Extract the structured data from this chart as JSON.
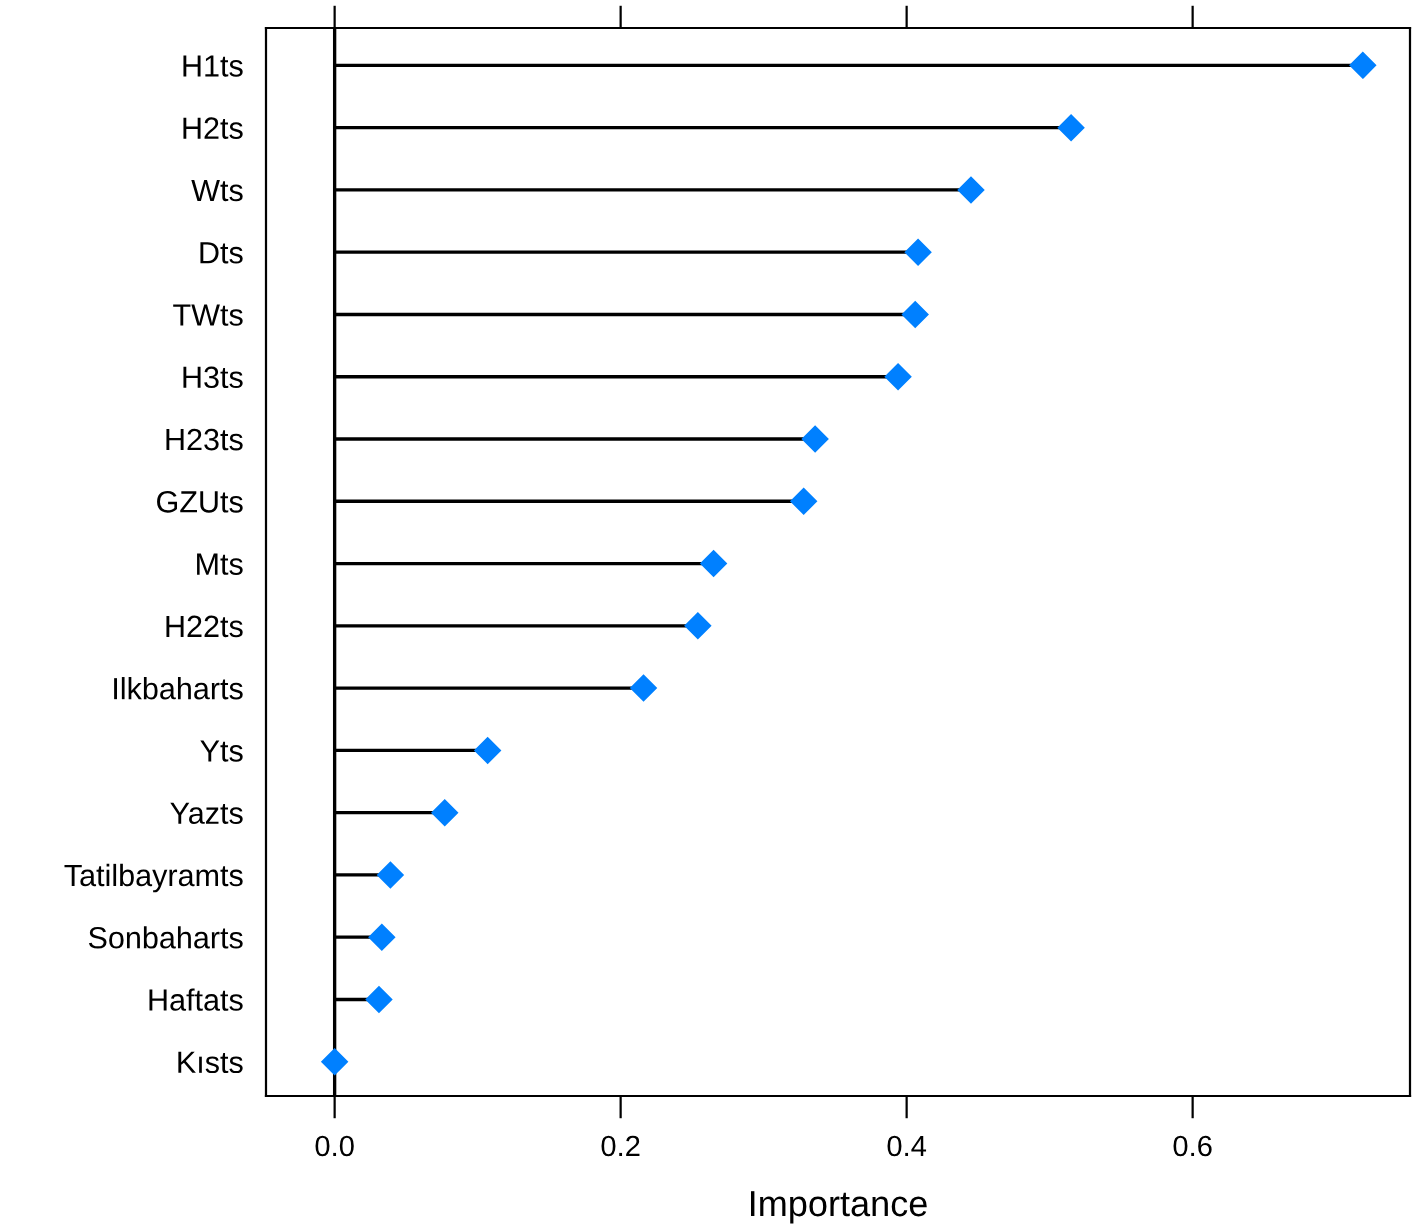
{
  "chart_data": {
    "type": "lollipop",
    "orientation": "horizontal",
    "xlabel": "Importance",
    "categories": [
      "H1ts",
      "H2ts",
      "Wts",
      "Dts",
      "TWts",
      "H3ts",
      "H23ts",
      "GZUts",
      "Mts",
      "H22ts",
      "Ilkbaharts",
      "Yts",
      "Yazts",
      "Tatilbayramts",
      "Sonbaharts",
      "Haftats",
      "Kısts"
    ],
    "values": [
      0.719,
      0.515,
      0.445,
      0.408,
      0.406,
      0.394,
      0.336,
      0.328,
      0.265,
      0.254,
      0.216,
      0.107,
      0.077,
      0.039,
      0.033,
      0.031,
      0.0
    ],
    "color": "#0080ff",
    "marker": "diamond",
    "xlim": [
      -0.048,
      0.752
    ],
    "xticks": [
      {
        "value": 0,
        "label": "0.0"
      },
      {
        "value": 0.2,
        "label": "0.2"
      },
      {
        "value": 0.4,
        "label": "0.4"
      },
      {
        "value": 0.6,
        "label": "0.6"
      }
    ],
    "legend": false
  }
}
